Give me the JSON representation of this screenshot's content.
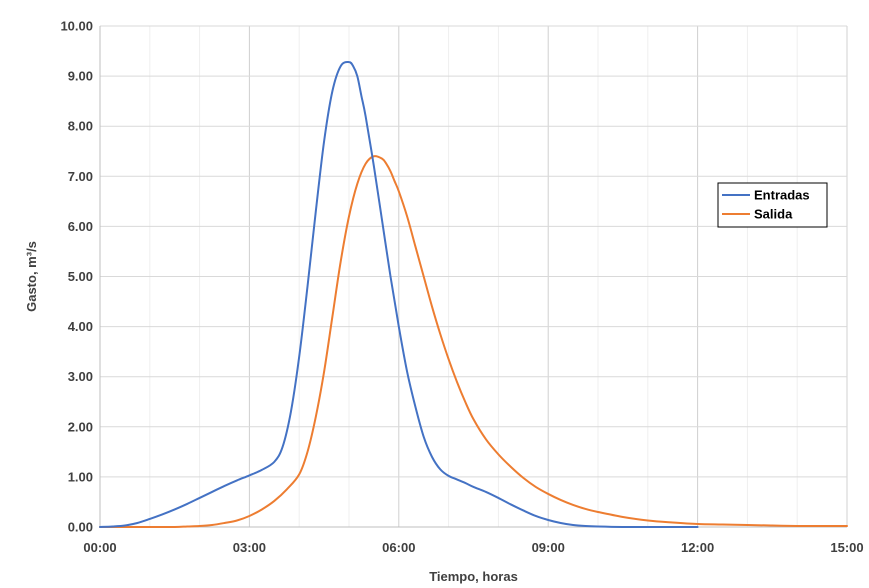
{
  "chart_data": {
    "type": "line",
    "xlabel": "Tiempo, horas",
    "ylabel": "Gasto, m³/s",
    "xlim": [
      0,
      900
    ],
    "ylim": [
      0,
      10
    ],
    "x_ticks": [
      {
        "value": 0,
        "label": "00:00"
      },
      {
        "value": 180,
        "label": "03:00"
      },
      {
        "value": 360,
        "label": "06:00"
      },
      {
        "value": 540,
        "label": "09:00"
      },
      {
        "value": 720,
        "label": "12:00"
      },
      {
        "value": 900,
        "label": "15:00"
      }
    ],
    "x_minor_step": 60,
    "y_ticks": [
      {
        "value": 0,
        "label": "0.00"
      },
      {
        "value": 1,
        "label": "1.00"
      },
      {
        "value": 2,
        "label": "2.00"
      },
      {
        "value": 3,
        "label": "3.00"
      },
      {
        "value": 4,
        "label": "4.00"
      },
      {
        "value": 5,
        "label": "5.00"
      },
      {
        "value": 6,
        "label": "6.00"
      },
      {
        "value": 7,
        "label": "7.00"
      },
      {
        "value": 8,
        "label": "8.00"
      },
      {
        "value": 9,
        "label": "9.00"
      },
      {
        "value": 10,
        "label": "10.00"
      }
    ],
    "grid": true,
    "legend_position": "right",
    "series": [
      {
        "name": "Entradas",
        "color": "#4472C4",
        "x": [
          0,
          15,
          30,
          45,
          60,
          75,
          90,
          105,
          120,
          135,
          150,
          165,
          180,
          195,
          210,
          220,
          230,
          240,
          250,
          260,
          270,
          280,
          290,
          300,
          305,
          310,
          315,
          320,
          330,
          340,
          350,
          360,
          370,
          380,
          390,
          400,
          410,
          420,
          430,
          440,
          450,
          465,
          480,
          495,
          510,
          525,
          540,
          555,
          570,
          585,
          600,
          630,
          660,
          690,
          720
        ],
        "y": [
          0.0,
          0.01,
          0.03,
          0.08,
          0.16,
          0.25,
          0.35,
          0.46,
          0.58,
          0.7,
          0.82,
          0.93,
          1.03,
          1.14,
          1.3,
          1.6,
          2.3,
          3.4,
          4.8,
          6.3,
          7.7,
          8.7,
          9.2,
          9.28,
          9.2,
          9.0,
          8.6,
          8.2,
          7.2,
          6.1,
          5.0,
          4.0,
          3.1,
          2.4,
          1.8,
          1.4,
          1.15,
          1.02,
          0.95,
          0.88,
          0.8,
          0.7,
          0.58,
          0.45,
          0.33,
          0.22,
          0.14,
          0.08,
          0.04,
          0.02,
          0.01,
          0.0,
          0.0,
          0.0,
          0.0
        ]
      },
      {
        "name": "Salida",
        "color": "#ED7D31",
        "x": [
          0,
          30,
          60,
          90,
          105,
          120,
          135,
          150,
          165,
          180,
          195,
          210,
          225,
          240,
          250,
          260,
          270,
          280,
          290,
          300,
          310,
          320,
          330,
          340,
          345,
          350,
          355,
          360,
          370,
          380,
          390,
          400,
          410,
          420,
          430,
          440,
          450,
          465,
          480,
          495,
          510,
          525,
          540,
          555,
          570,
          585,
          600,
          630,
          660,
          690,
          720,
          750,
          780,
          810,
          840,
          870,
          900
        ],
        "y": [
          0.0,
          0.0,
          0.0,
          0.0,
          0.01,
          0.02,
          0.04,
          0.08,
          0.13,
          0.22,
          0.35,
          0.52,
          0.75,
          1.05,
          1.5,
          2.2,
          3.1,
          4.2,
          5.3,
          6.2,
          6.85,
          7.25,
          7.4,
          7.35,
          7.25,
          7.1,
          6.9,
          6.7,
          6.2,
          5.6,
          5.0,
          4.4,
          3.85,
          3.35,
          2.9,
          2.5,
          2.15,
          1.75,
          1.45,
          1.2,
          0.98,
          0.8,
          0.66,
          0.54,
          0.44,
          0.36,
          0.3,
          0.2,
          0.13,
          0.09,
          0.06,
          0.05,
          0.04,
          0.03,
          0.02,
          0.02,
          0.02
        ]
      }
    ]
  }
}
